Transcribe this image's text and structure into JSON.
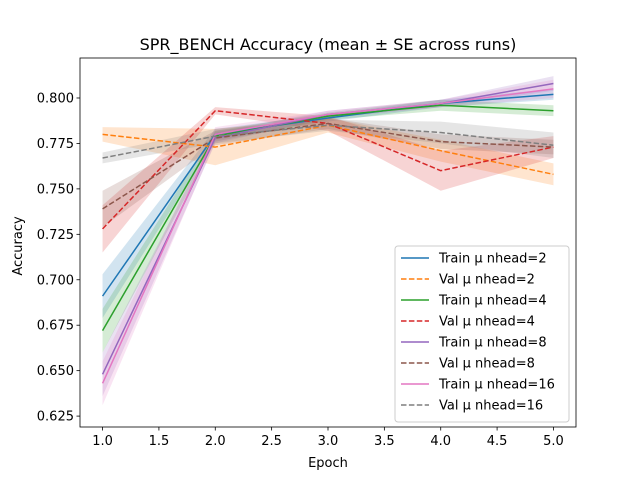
{
  "chart_data": {
    "type": "line",
    "title": "SPR_BENCH Accuracy (mean ± SE across runs)",
    "xlabel": "Epoch",
    "ylabel": "Accuracy",
    "xlim": [
      0.8,
      5.2
    ],
    "ylim": [
      0.619,
      0.822
    ],
    "x_ticks": [
      "1.0",
      "1.5",
      "2.0",
      "2.5",
      "3.0",
      "3.5",
      "4.0",
      "4.5",
      "5.0"
    ],
    "y_ticks": [
      "0.625",
      "0.650",
      "0.675",
      "0.700",
      "0.725",
      "0.750",
      "0.775",
      "0.800"
    ],
    "x": [
      1,
      2,
      3,
      4,
      5
    ],
    "legend_position": "lower-right",
    "grid": false,
    "series": [
      {
        "name": "Train μ nhead=2",
        "color": "#1f77b4",
        "dash": "solid",
        "values": [
          0.691,
          0.78,
          0.789,
          0.797,
          0.802
        ],
        "se": [
          0.012,
          0.003,
          0.002,
          0.002,
          0.003
        ]
      },
      {
        "name": "Val μ nhead=2",
        "color": "#ff7f0e",
        "dash": "dashed",
        "values": [
          0.78,
          0.773,
          0.785,
          0.771,
          0.758
        ],
        "se": [
          0.004,
          0.01,
          0.004,
          0.006,
          0.006
        ]
      },
      {
        "name": "Train μ nhead=4",
        "color": "#2ca02c",
        "dash": "solid",
        "values": [
          0.672,
          0.779,
          0.79,
          0.796,
          0.793
        ],
        "se": [
          0.012,
          0.003,
          0.002,
          0.003,
          0.003
        ]
      },
      {
        "name": "Val μ nhead=4",
        "color": "#d62728",
        "dash": "dashed",
        "values": [
          0.728,
          0.793,
          0.786,
          0.76,
          0.773
        ],
        "se": [
          0.013,
          0.002,
          0.004,
          0.011,
          0.006
        ]
      },
      {
        "name": "Train μ nhead=8",
        "color": "#9467bd",
        "dash": "solid",
        "values": [
          0.648,
          0.778,
          0.791,
          0.797,
          0.808
        ],
        "se": [
          0.012,
          0.003,
          0.002,
          0.002,
          0.004
        ]
      },
      {
        "name": "Val μ nhead=8",
        "color": "#8c564b",
        "dash": "dashed",
        "values": [
          0.739,
          0.778,
          0.786,
          0.776,
          0.773
        ],
        "se": [
          0.01,
          0.004,
          0.003,
          0.004,
          0.004
        ]
      },
      {
        "name": "Train μ nhead=16",
        "color": "#e377c2",
        "dash": "solid",
        "values": [
          0.643,
          0.78,
          0.791,
          0.797,
          0.805
        ],
        "se": [
          0.012,
          0.004,
          0.002,
          0.002,
          0.005
        ]
      },
      {
        "name": "Val μ nhead=16",
        "color": "#7f7f7f",
        "dash": "dashed",
        "values": [
          0.767,
          0.779,
          0.785,
          0.781,
          0.774
        ],
        "se": [
          0.003,
          0.004,
          0.003,
          0.006,
          0.007
        ]
      }
    ]
  }
}
